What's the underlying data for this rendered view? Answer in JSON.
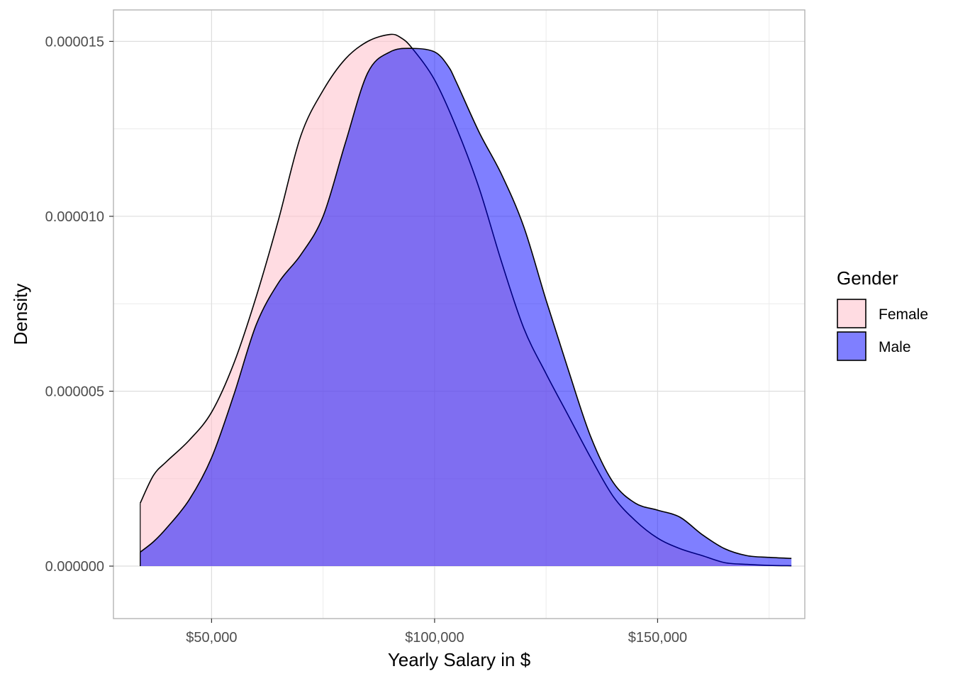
{
  "chart_data": {
    "type": "area",
    "subtype": "density",
    "title": "",
    "xlabel": "Yearly Salary in $",
    "ylabel": "Density",
    "xlim": [
      28000,
      183000
    ],
    "ylim": [
      -1.5e-06,
      1.59e-05
    ],
    "x_ticks": [
      {
        "value": 50000,
        "label": "$50,000"
      },
      {
        "value": 100000,
        "label": "$100,000"
      },
      {
        "value": 150000,
        "label": "$150,000"
      }
    ],
    "x_minor_ticks": [
      75000,
      125000,
      175000
    ],
    "y_ticks": [
      {
        "value": 0,
        "label": "0.000000"
      },
      {
        "value": 5e-06,
        "label": "0.000005"
      },
      {
        "value": 1e-05,
        "label": "0.000010"
      },
      {
        "value": 1.5e-05,
        "label": "0.000015"
      }
    ],
    "y_minor_ticks": [
      2.5e-06,
      7.5e-06,
      1.25e-05
    ],
    "grid": true,
    "legend": {
      "title": "Gender",
      "position": "right"
    },
    "series": [
      {
        "name": "Female",
        "color": "#FFC0CB",
        "opacity": 0.55,
        "x": [
          34000,
          37000,
          40000,
          45000,
          50000,
          55000,
          60000,
          65000,
          70000,
          75000,
          80000,
          85000,
          90000,
          92500,
          95000,
          100000,
          105000,
          110000,
          115000,
          120000,
          125000,
          130000,
          135000,
          140000,
          145000,
          150000,
          155000,
          160000,
          165000,
          170000,
          175000,
          180000
        ],
        "y": [
          1.8e-06,
          2.6e-06,
          3e-06,
          3.6e-06,
          4.4e-06,
          5.8e-06,
          7.7e-06,
          9.9e-06,
          1.23e-05,
          1.36e-05,
          1.45e-05,
          1.5e-05,
          1.52e-05,
          1.51e-05,
          1.48e-05,
          1.39e-05,
          1.25e-05,
          1.08e-05,
          8.7e-06,
          6.8e-06,
          5.5e-06,
          4.3e-06,
          3.1e-06,
          2e-06,
          1.3e-06,
          8e-07,
          5e-07,
          3e-07,
          1e-07,
          5e-08,
          2e-08,
          1e-08
        ]
      },
      {
        "name": "Male",
        "color": "#0000FF",
        "opacity": 0.5,
        "x": [
          34000,
          37000,
          40000,
          45000,
          50000,
          55000,
          60000,
          65000,
          70000,
          75000,
          80000,
          85000,
          90000,
          95000,
          100000,
          103000,
          105000,
          110000,
          115000,
          120000,
          125000,
          130000,
          135000,
          140000,
          145000,
          150000,
          155000,
          160000,
          165000,
          170000,
          175000,
          180000
        ],
        "y": [
          4e-07,
          7e-07,
          1.1e-06,
          1.9e-06,
          3.1e-06,
          4.9e-06,
          6.9e-06,
          8.1e-06,
          8.9e-06,
          1e-05,
          1.21e-05,
          1.41e-05,
          1.47e-05,
          1.48e-05,
          1.47e-05,
          1.43e-05,
          1.38e-05,
          1.24e-05,
          1.12e-05,
          9.7e-06,
          7.6e-06,
          5.6e-06,
          3.7e-06,
          2.4e-06,
          1.8e-06,
          1.6e-06,
          1.4e-06,
          9e-07,
          5e-07,
          3e-07,
          2.5e-07,
          2.2e-07
        ]
      }
    ]
  }
}
